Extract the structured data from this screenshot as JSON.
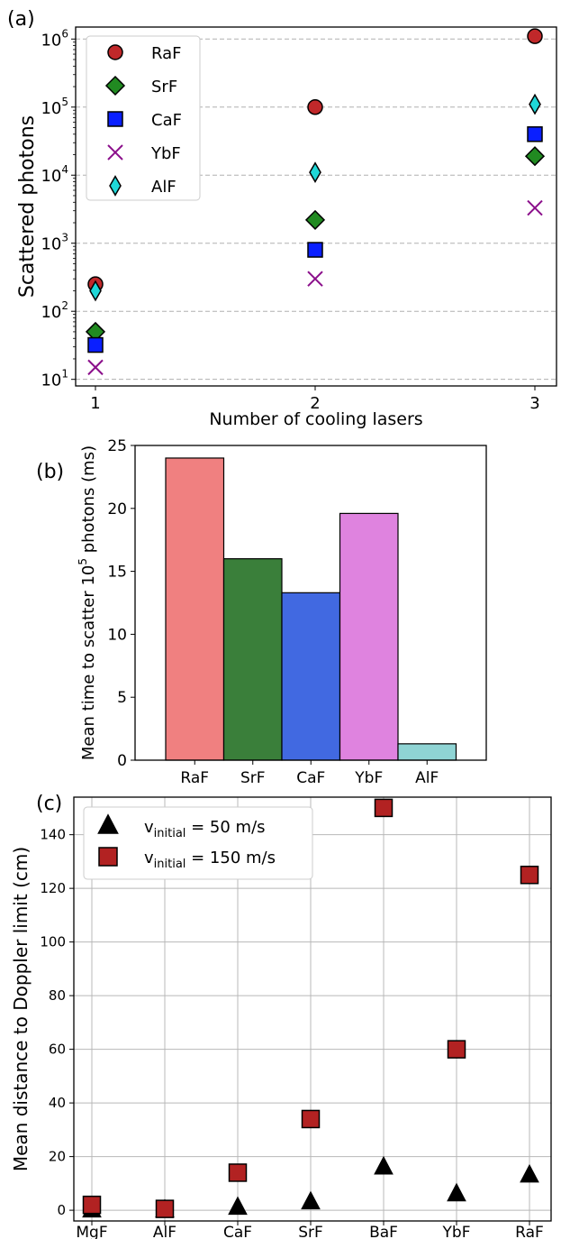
{
  "figure": {
    "panel_labels": [
      "(a)",
      "(b)",
      "(c)"
    ]
  },
  "chart_data": [
    {
      "type": "scatter",
      "panel": "(a)",
      "xlabel": "Number of cooling lasers",
      "ylabel": "Scattered photons",
      "x_ticks": [
        "1",
        "2",
        "3"
      ],
      "y_scale": "log",
      "y_ticks": [
        "10",
        "10",
        "10",
        "10",
        "10",
        "10"
      ],
      "y_tick_exponents": [
        "1",
        "2",
        "3",
        "4",
        "5",
        "6"
      ],
      "ylim": [
        8,
        1500000
      ],
      "grid": "horizontal dashed",
      "legend_position": "top-left",
      "series": [
        {
          "name": "RaF",
          "marker": "circle",
          "color": "#c0282a",
          "x": [
            1,
            2,
            3
          ],
          "values": [
            250,
            100000,
            1100000
          ]
        },
        {
          "name": "SrF",
          "marker": "diamond",
          "color": "#218a21",
          "x": [
            1,
            2,
            3
          ],
          "values": [
            50,
            2200,
            19000
          ]
        },
        {
          "name": "CaF",
          "marker": "square",
          "color": "#0a1fff",
          "x": [
            1,
            2,
            3
          ],
          "values": [
            32,
            800,
            40000
          ]
        },
        {
          "name": "YbF",
          "marker": "x",
          "color": "#8b0f8b",
          "x": [
            1,
            2,
            3
          ],
          "values": [
            15,
            300,
            3300
          ]
        },
        {
          "name": "AlF",
          "marker": "thin-diamond",
          "color": "#1fd7d7",
          "x": [
            1,
            2,
            3
          ],
          "values": [
            200,
            11000,
            110000
          ]
        }
      ]
    },
    {
      "type": "bar",
      "panel": "(b)",
      "ylabel_prefix": "Mean time to scatter 10",
      "ylabel_exponent": "5",
      "ylabel_suffix": " photons (ms)",
      "categories": [
        "RaF",
        "SrF",
        "CaF",
        "YbF",
        "AlF"
      ],
      "values": [
        24.0,
        16.0,
        13.3,
        19.6,
        1.3
      ],
      "colors": [
        "#f08080",
        "#3a7f3a",
        "#4169e1",
        "#df83df",
        "#8fd4d4"
      ],
      "ylim": [
        0,
        25
      ],
      "y_ticks": [
        "0",
        "5",
        "10",
        "15",
        "20",
        "25"
      ],
      "grid": false
    },
    {
      "type": "scatter",
      "panel": "(c)",
      "ylabel": "Mean distance to Doppler limit (cm)",
      "categories": [
        "MgF",
        "AlF",
        "CaF",
        "SrF",
        "BaF",
        "YbF",
        "RaF"
      ],
      "ylim": [
        -4,
        154
      ],
      "y_ticks": [
        "0",
        "20",
        "40",
        "60",
        "80",
        "100",
        "120",
        "140"
      ],
      "grid": true,
      "legend_position": "top-left",
      "series": [
        {
          "name_main": "v",
          "name_sub": "initial",
          "name_rest": " = 50 m/s",
          "marker": "triangle",
          "color": "#000000",
          "values": [
            0,
            0,
            1,
            3,
            16,
            6,
            13
          ]
        },
        {
          "name_main": "v",
          "name_sub": "initial",
          "name_rest": " = 150 m/s",
          "marker": "square",
          "color": "#b22222",
          "values": [
            2,
            0.5,
            14,
            34,
            150,
            60,
            125
          ]
        }
      ]
    }
  ]
}
